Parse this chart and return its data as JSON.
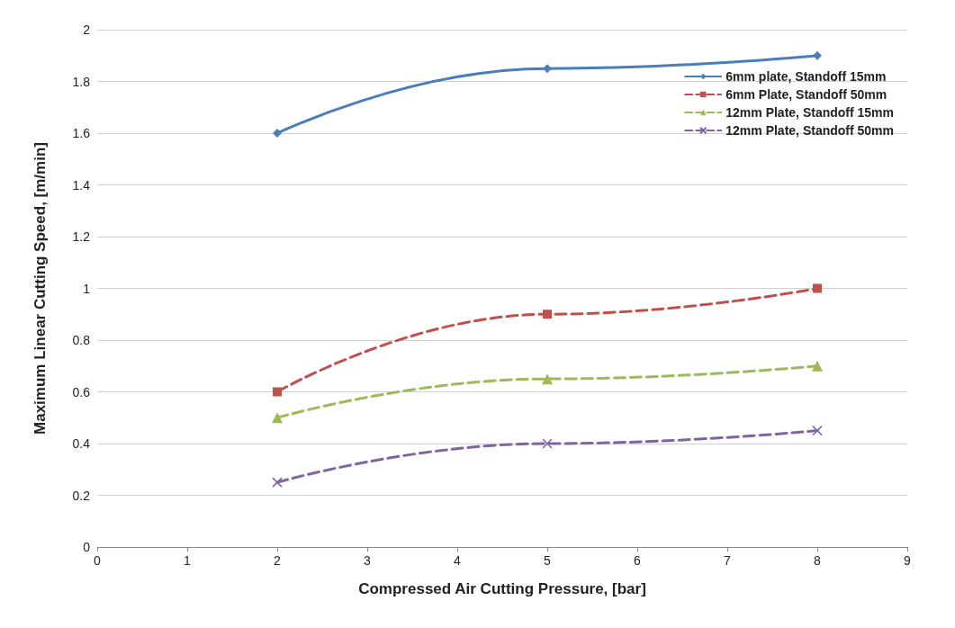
{
  "chart_data": {
    "type": "line",
    "xlabel": "Compressed Air Cutting Pressure, [bar]",
    "ylabel": "Maximum Linear Cutting Speed, [m/min]",
    "xlim": [
      0,
      9
    ],
    "xticks": [
      0,
      1,
      2,
      3,
      4,
      5,
      6,
      7,
      8,
      9
    ],
    "ylim": [
      0,
      2
    ],
    "yticks": [
      0,
      0.2,
      0.4,
      0.6,
      0.8,
      1,
      1.2,
      1.4,
      1.6,
      1.8,
      2
    ],
    "grid": "y",
    "legend": "top right",
    "series": [
      {
        "name": "6mm plate, Standoff 15mm",
        "color": "#4a7ebb",
        "x": [
          2,
          5,
          8
        ],
        "values": [
          1.6,
          1.85,
          1.9
        ],
        "marker": "diamond",
        "line_style": "solid"
      },
      {
        "name": "6mm Plate, Standoff 50mm",
        "color": "#c0504d",
        "x": [
          2,
          5,
          8
        ],
        "values": [
          0.6,
          0.9,
          1.0
        ],
        "marker": "square",
        "line_style": "dashed"
      },
      {
        "name": "12mm Plate, Standoff 15mm",
        "color": "#9bbb59",
        "x": [
          2,
          5,
          8
        ],
        "values": [
          0.5,
          0.65,
          0.7
        ],
        "marker": "triangle",
        "line_style": "dashed"
      },
      {
        "name": "12mm Plate, Standoff 50mm",
        "color": "#8064a2",
        "x": [
          2,
          5,
          8
        ],
        "values": [
          0.25,
          0.4,
          0.45
        ],
        "marker": "cross",
        "line_style": "dashed"
      }
    ]
  }
}
